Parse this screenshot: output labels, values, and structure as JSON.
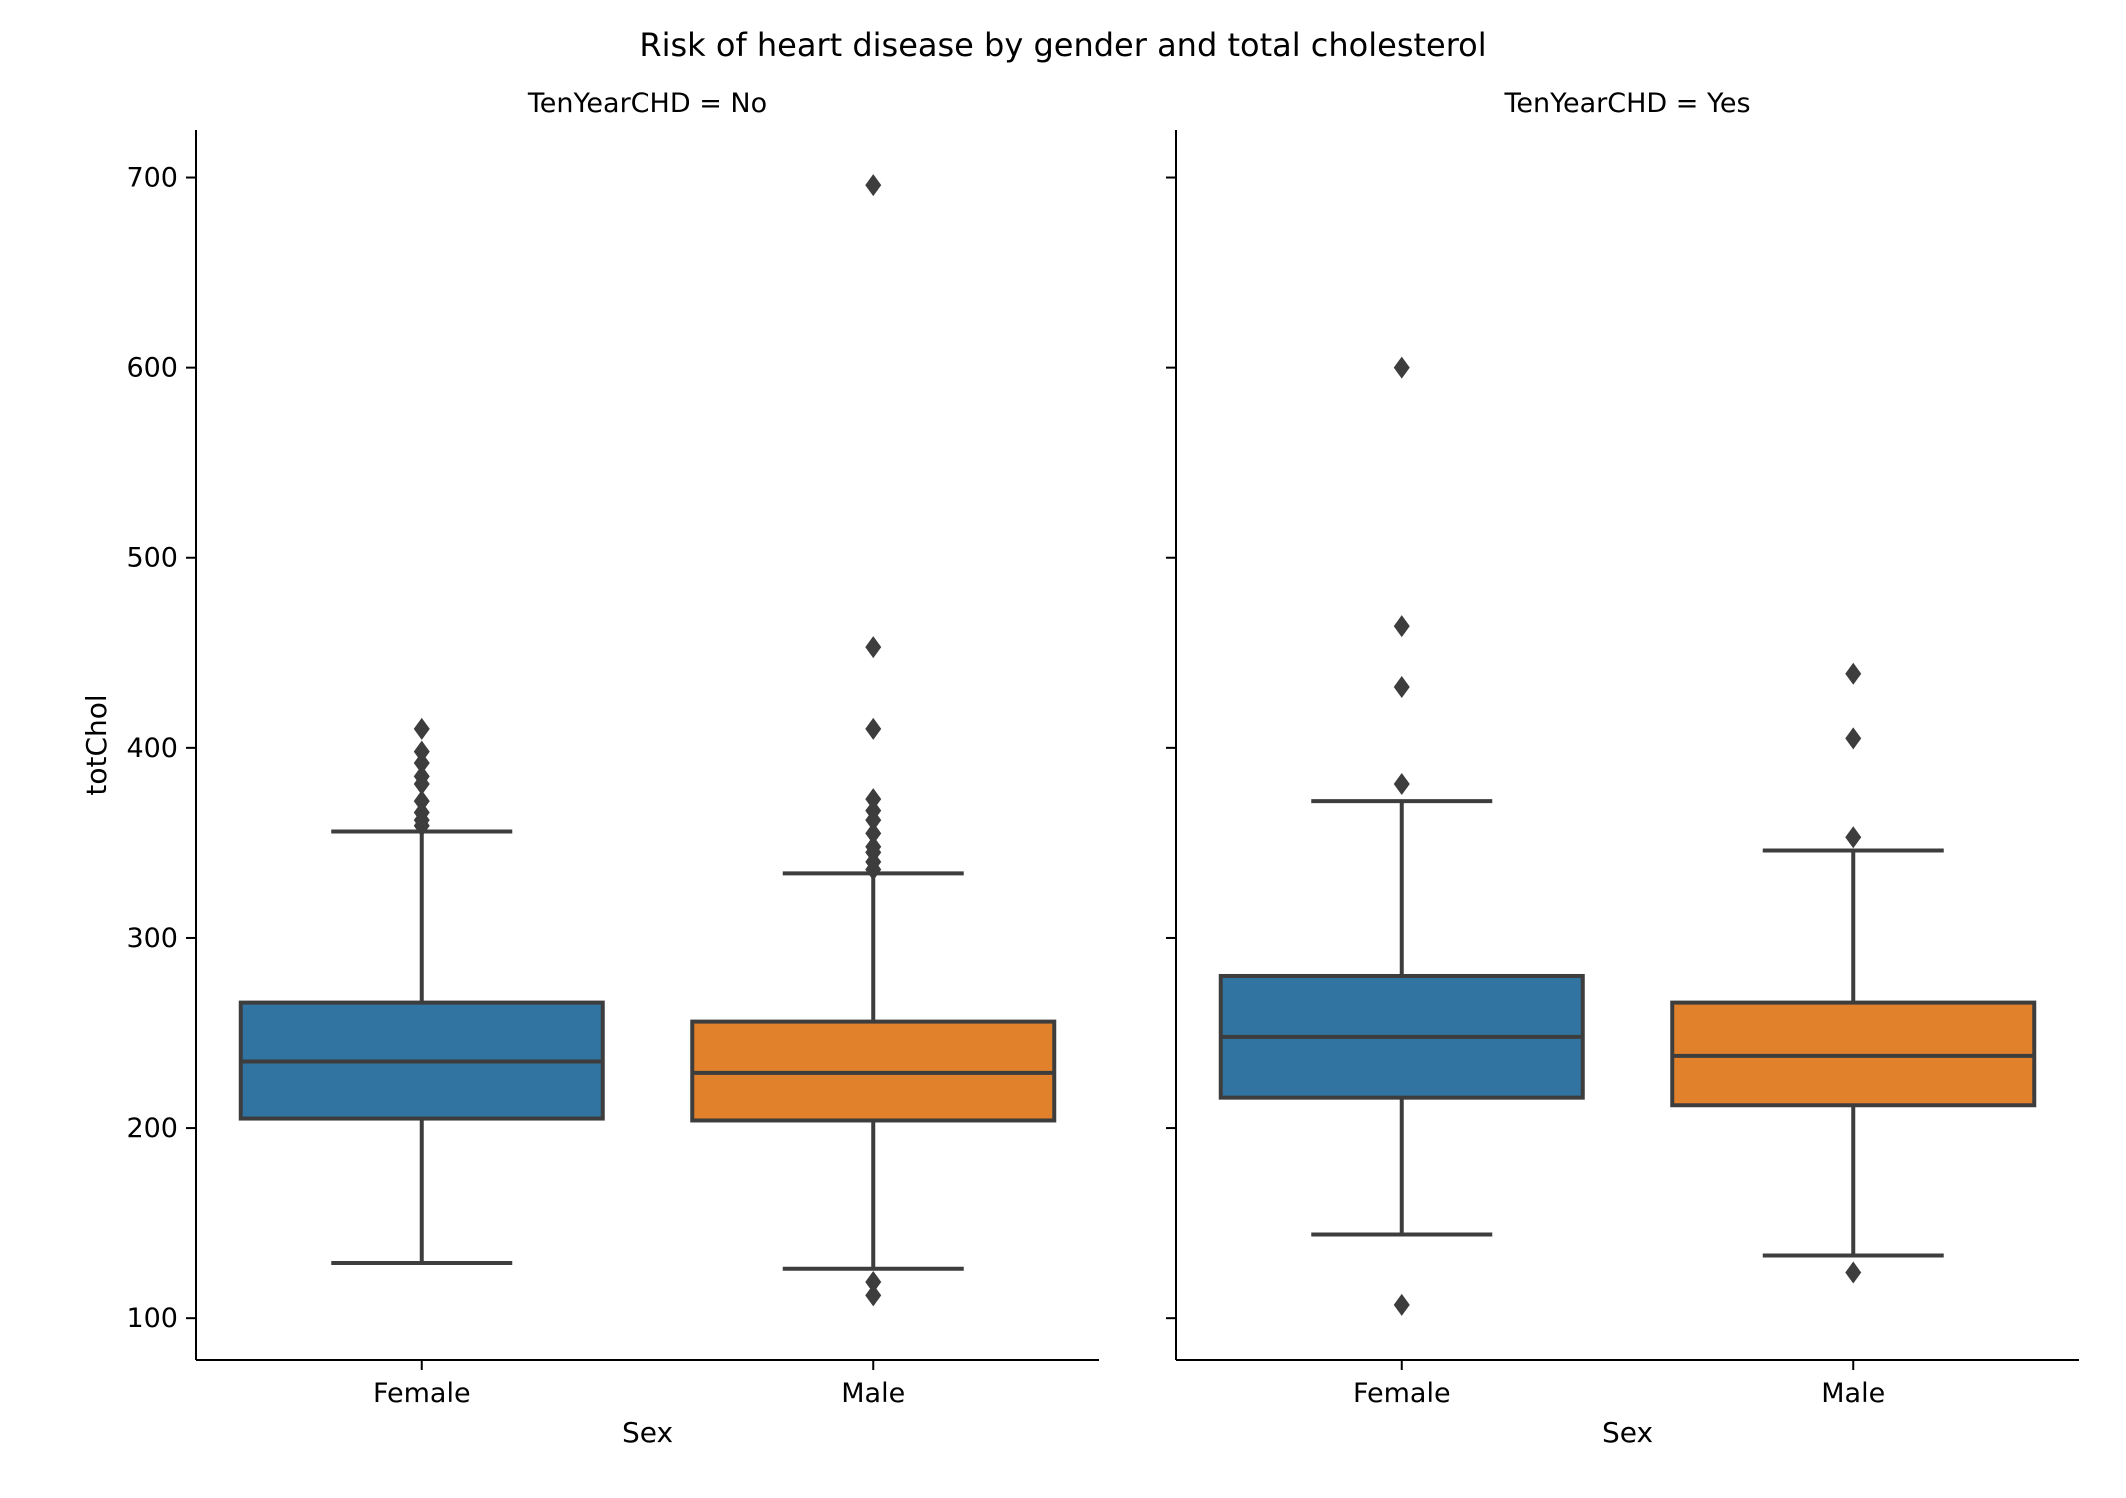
{
  "chart_data": {
    "type": "box",
    "title": "Risk of heart disease by gender and total cholesterol",
    "ylabel": "totChol",
    "xlabel": "Sex",
    "ylim": [
      78,
      725
    ],
    "y_ticks": [
      "100",
      "200",
      "300",
      "400",
      "500",
      "600",
      "700"
    ],
    "categories": [
      "Female",
      "Male"
    ],
    "colors": {
      "Female": "#3274a1",
      "Male": "#e1812c",
      "edge": "#3d3d3d"
    },
    "grid": false,
    "panels": [
      {
        "title": "TenYearCHD = No",
        "boxes": [
          {
            "category": "Female",
            "whisker_low": 129,
            "q1": 205,
            "median": 235,
            "q3": 266,
            "whisker_high": 356,
            "outliers": [
              359,
              362,
              366,
              372,
              381,
              385,
              392,
              398,
              410
            ]
          },
          {
            "category": "Male",
            "whisker_low": 126,
            "q1": 204,
            "median": 229,
            "q3": 256,
            "whisker_high": 334,
            "outliers": [
              112,
              119,
              336,
              340,
              345,
              348,
              355,
              362,
              367,
              373,
              410,
              453,
              696
            ]
          }
        ]
      },
      {
        "title": "TenYearCHD = Yes",
        "boxes": [
          {
            "category": "Female",
            "whisker_low": 144,
            "q1": 216,
            "median": 248,
            "q3": 280,
            "whisker_high": 372,
            "outliers": [
              107,
              381,
              432,
              464,
              600
            ]
          },
          {
            "category": "Male",
            "whisker_low": 133,
            "q1": 212,
            "median": 238,
            "q3": 266,
            "whisker_high": 346,
            "outliers": [
              124,
              353,
              405,
              439
            ]
          }
        ]
      }
    ]
  }
}
